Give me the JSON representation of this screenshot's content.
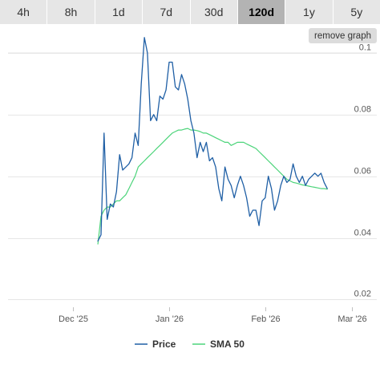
{
  "range_tabs": {
    "items": [
      "4h",
      "8h",
      "1d",
      "7d",
      "30d",
      "120d",
      "1y",
      "5y"
    ],
    "active": "120d"
  },
  "remove_graph_label": "remove graph",
  "colors": {
    "price": "#1f5fa5",
    "sma": "#4cd47a",
    "gridline": "#e6e6e6",
    "tab_bg": "#e6e6e6",
    "tab_active_bg": "#b3b3b3"
  },
  "chart_data": {
    "type": "line",
    "title": "",
    "xlabel": "",
    "ylabel": "",
    "ylim": [
      0.0175,
      0.1
    ],
    "y_ticks": [
      0.02,
      0.04,
      0.06,
      0.08,
      0.1
    ],
    "y_tick_labels": [
      "0.02",
      "0.04",
      "0.06",
      "0.08",
      "0.1"
    ],
    "x_ticks": [
      "2025-12-01",
      "2026-01-01",
      "2026-02-01",
      "2026-03-01"
    ],
    "x_tick_labels": [
      "Dec '25",
      "Jan '26",
      "Feb '26",
      "Mar '26"
    ],
    "xlim": [
      "2025-11-10",
      "2026-03-09"
    ],
    "grid": true,
    "legend": "bottom",
    "series": [
      {
        "name": "Price",
        "color": "#1f5fa5",
        "points": [
          [
            "2025-12-09",
            0.039
          ],
          [
            "2025-12-10",
            0.041
          ],
          [
            "2025-12-11",
            0.074
          ],
          [
            "2025-12-12",
            0.046
          ],
          [
            "2025-12-13",
            0.051
          ],
          [
            "2025-12-14",
            0.05
          ],
          [
            "2025-12-15",
            0.055
          ],
          [
            "2025-12-16",
            0.067
          ],
          [
            "2025-12-17",
            0.062
          ],
          [
            "2025-12-18",
            0.063
          ],
          [
            "2025-12-19",
            0.064
          ],
          [
            "2025-12-20",
            0.066
          ],
          [
            "2025-12-21",
            0.074
          ],
          [
            "2025-12-22",
            0.07
          ],
          [
            "2025-12-23",
            0.09
          ],
          [
            "2025-12-24",
            0.105
          ],
          [
            "2025-12-25",
            0.1
          ],
          [
            "2025-12-26",
            0.078
          ],
          [
            "2025-12-27",
            0.08
          ],
          [
            "2025-12-28",
            0.078
          ],
          [
            "2025-12-29",
            0.086
          ],
          [
            "2025-12-30",
            0.085
          ],
          [
            "2025-12-31",
            0.088
          ],
          [
            "2026-01-01",
            0.097
          ],
          [
            "2026-01-02",
            0.097
          ],
          [
            "2026-01-03",
            0.089
          ],
          [
            "2026-01-04",
            0.088
          ],
          [
            "2026-01-05",
            0.093
          ],
          [
            "2026-01-06",
            0.09
          ],
          [
            "2026-01-07",
            0.085
          ],
          [
            "2026-01-08",
            0.078
          ],
          [
            "2026-01-09",
            0.074
          ],
          [
            "2026-01-10",
            0.066
          ],
          [
            "2026-01-11",
            0.071
          ],
          [
            "2026-01-12",
            0.068
          ],
          [
            "2026-01-13",
            0.071
          ],
          [
            "2026-01-14",
            0.065
          ],
          [
            "2026-01-15",
            0.066
          ],
          [
            "2026-01-16",
            0.063
          ],
          [
            "2026-01-17",
            0.056
          ],
          [
            "2026-01-18",
            0.052
          ],
          [
            "2026-01-19",
            0.063
          ],
          [
            "2026-01-20",
            0.059
          ],
          [
            "2026-01-21",
            0.057
          ],
          [
            "2026-01-22",
            0.053
          ],
          [
            "2026-01-23",
            0.057
          ],
          [
            "2026-01-24",
            0.06
          ],
          [
            "2026-01-25",
            0.057
          ],
          [
            "2026-01-26",
            0.053
          ],
          [
            "2026-01-27",
            0.047
          ],
          [
            "2026-01-28",
            0.049
          ],
          [
            "2026-01-29",
            0.049
          ],
          [
            "2026-01-30",
            0.044
          ],
          [
            "2026-01-31",
            0.052
          ],
          [
            "2026-02-01",
            0.053
          ],
          [
            "2026-02-02",
            0.06
          ],
          [
            "2026-02-03",
            0.056
          ],
          [
            "2026-02-04",
            0.049
          ],
          [
            "2026-02-05",
            0.052
          ],
          [
            "2026-02-06",
            0.057
          ],
          [
            "2026-02-07",
            0.06
          ],
          [
            "2026-02-08",
            0.058
          ],
          [
            "2026-02-09",
            0.059
          ],
          [
            "2026-02-10",
            0.064
          ],
          [
            "2026-02-11",
            0.06
          ],
          [
            "2026-02-12",
            0.058
          ],
          [
            "2026-02-13",
            0.06
          ],
          [
            "2026-02-14",
            0.057
          ],
          [
            "2026-02-15",
            0.059
          ],
          [
            "2026-02-16",
            0.06
          ],
          [
            "2026-02-17",
            0.061
          ],
          [
            "2026-02-18",
            0.06
          ],
          [
            "2026-02-19",
            0.061
          ],
          [
            "2026-02-20",
            0.058
          ],
          [
            "2026-02-21",
            0.056
          ]
        ]
      },
      {
        "name": "SMA 50",
        "color": "#4cd47a",
        "points": [
          [
            "2025-12-09",
            0.038
          ],
          [
            "2025-12-10",
            0.047
          ],
          [
            "2025-12-11",
            0.049
          ],
          [
            "2025-12-12",
            0.05
          ],
          [
            "2025-12-13",
            0.05
          ],
          [
            "2025-12-14",
            0.051
          ],
          [
            "2025-12-15",
            0.052
          ],
          [
            "2025-12-16",
            0.052
          ],
          [
            "2025-12-17",
            0.053
          ],
          [
            "2025-12-18",
            0.054
          ],
          [
            "2025-12-19",
            0.056
          ],
          [
            "2025-12-20",
            0.058
          ],
          [
            "2025-12-21",
            0.06
          ],
          [
            "2025-12-22",
            0.063
          ],
          [
            "2025-12-23",
            0.064
          ],
          [
            "2025-12-24",
            0.065
          ],
          [
            "2025-12-25",
            0.066
          ],
          [
            "2025-12-26",
            0.067
          ],
          [
            "2025-12-27",
            0.068
          ],
          [
            "2025-12-28",
            0.069
          ],
          [
            "2025-12-29",
            0.07
          ],
          [
            "2025-12-30",
            0.071
          ],
          [
            "2025-12-31",
            0.072
          ],
          [
            "2026-01-01",
            0.073
          ],
          [
            "2026-01-02",
            0.074
          ],
          [
            "2026-01-03",
            0.0745
          ],
          [
            "2026-01-04",
            0.075
          ],
          [
            "2026-01-05",
            0.075
          ],
          [
            "2026-01-06",
            0.0753
          ],
          [
            "2026-01-07",
            0.0755
          ],
          [
            "2026-01-08",
            0.075
          ],
          [
            "2026-01-09",
            0.075
          ],
          [
            "2026-01-10",
            0.0748
          ],
          [
            "2026-01-11",
            0.0745
          ],
          [
            "2026-01-12",
            0.074
          ],
          [
            "2026-01-13",
            0.074
          ],
          [
            "2026-01-14",
            0.0735
          ],
          [
            "2026-01-15",
            0.073
          ],
          [
            "2026-01-16",
            0.0725
          ],
          [
            "2026-01-17",
            0.072
          ],
          [
            "2026-01-18",
            0.0715
          ],
          [
            "2026-01-19",
            0.071
          ],
          [
            "2026-01-20",
            0.071
          ],
          [
            "2026-01-21",
            0.07
          ],
          [
            "2026-01-22",
            0.0705
          ],
          [
            "2026-01-23",
            0.071
          ],
          [
            "2026-01-24",
            0.071
          ],
          [
            "2026-01-25",
            0.071
          ],
          [
            "2026-01-26",
            0.0705
          ],
          [
            "2026-01-27",
            0.07
          ],
          [
            "2026-01-28",
            0.0695
          ],
          [
            "2026-01-29",
            0.069
          ],
          [
            "2026-01-30",
            0.068
          ],
          [
            "2026-01-31",
            0.067
          ],
          [
            "2026-02-01",
            0.066
          ],
          [
            "2026-02-02",
            0.065
          ],
          [
            "2026-02-03",
            0.064
          ],
          [
            "2026-02-04",
            0.063
          ],
          [
            "2026-02-05",
            0.062
          ],
          [
            "2026-02-06",
            0.061
          ],
          [
            "2026-02-07",
            0.06
          ],
          [
            "2026-02-08",
            0.059
          ],
          [
            "2026-02-09",
            0.0585
          ],
          [
            "2026-02-10",
            0.058
          ],
          [
            "2026-02-11",
            0.0578
          ],
          [
            "2026-02-12",
            0.0575
          ],
          [
            "2026-02-13",
            0.0572
          ],
          [
            "2026-02-14",
            0.057
          ],
          [
            "2026-02-15",
            0.0568
          ],
          [
            "2026-02-16",
            0.0566
          ],
          [
            "2026-02-17",
            0.0564
          ],
          [
            "2026-02-18",
            0.0562
          ],
          [
            "2026-02-19",
            0.056
          ],
          [
            "2026-02-20",
            0.056
          ],
          [
            "2026-02-21",
            0.0558
          ]
        ]
      }
    ]
  }
}
